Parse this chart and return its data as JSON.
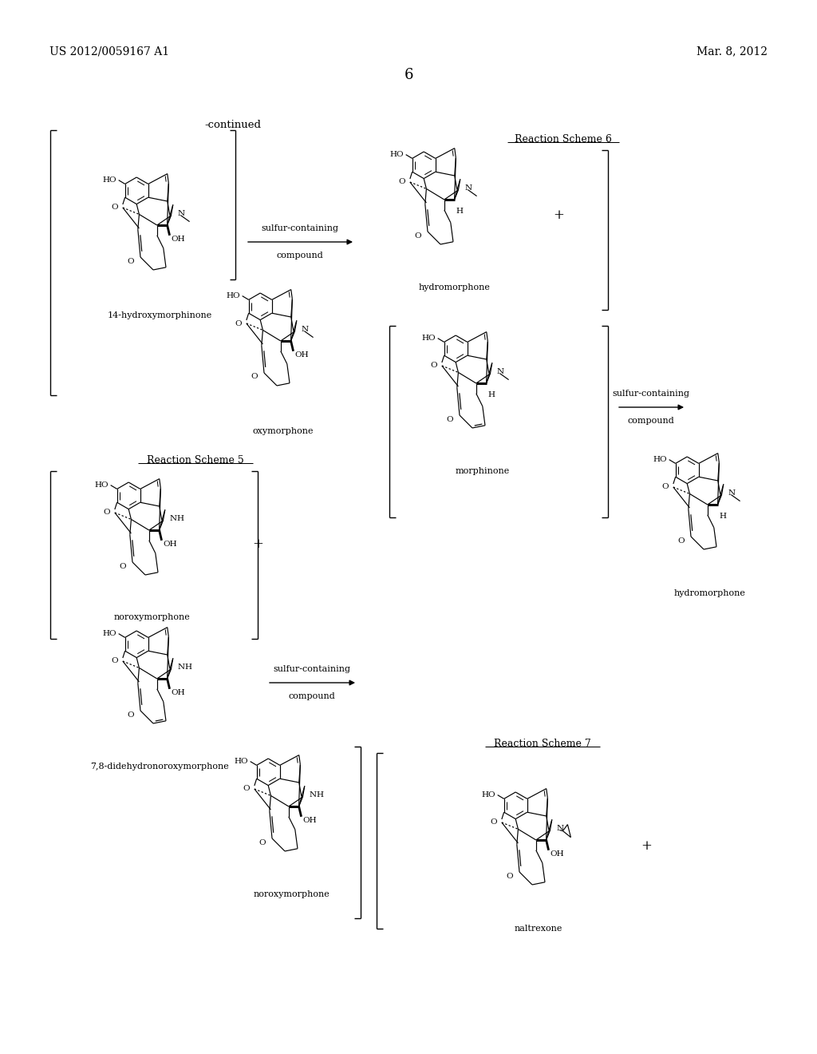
{
  "bg": "#ffffff",
  "header_left": "US 2012/0059167 A1",
  "header_right": "Mar. 8, 2012",
  "page_num": "6",
  "continued": "-continued",
  "scheme6": "Reaction Scheme 6",
  "scheme5": "Reaction Scheme 5",
  "scheme7": "Reaction Scheme 7",
  "arrow_text1": "sulfur-containing",
  "arrow_text2": "compound"
}
